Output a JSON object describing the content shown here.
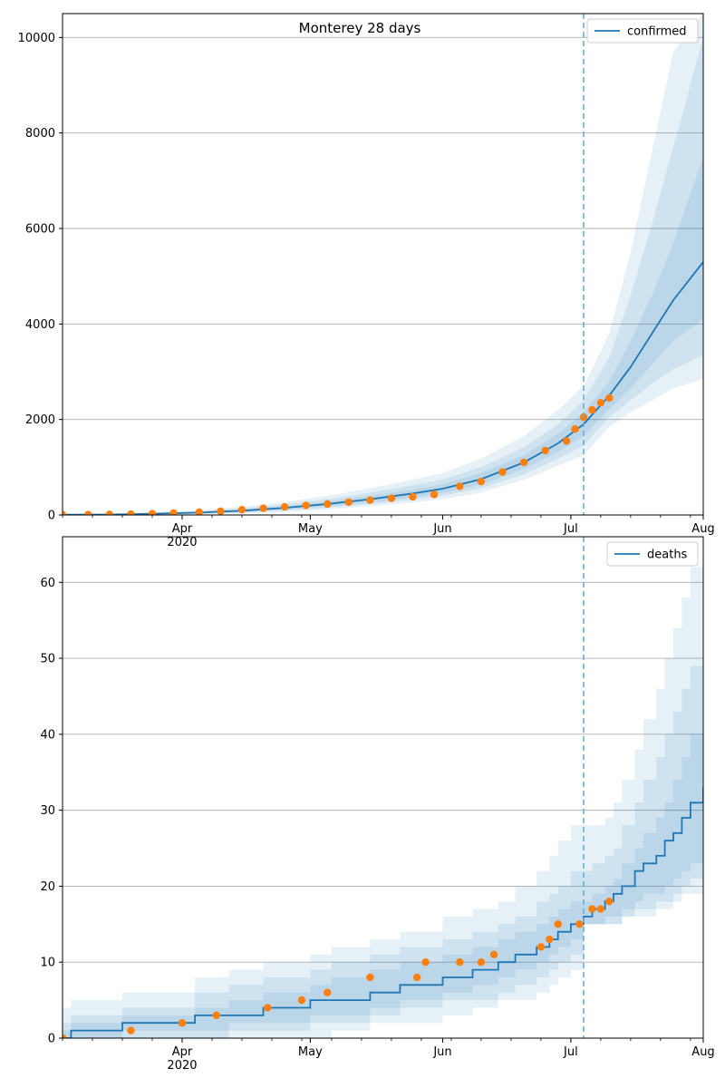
{
  "chart_data": [
    {
      "type": "line",
      "title": "Monterey 28 days",
      "xlabel": "",
      "ylabel": "",
      "x_range": [
        "2020-03-04",
        "2020-08-01"
      ],
      "ylim": [
        0,
        10500
      ],
      "yticks": [
        0,
        2000,
        4000,
        6000,
        8000,
        10000
      ],
      "xticks": [
        {
          "date": "2020-04-01",
          "label": "Apr",
          "sublabel": "2020"
        },
        {
          "date": "2020-05-01",
          "label": "May",
          "sublabel": ""
        },
        {
          "date": "2020-06-01",
          "label": "Jun",
          "sublabel": ""
        },
        {
          "date": "2020-07-01",
          "label": "Jul",
          "sublabel": ""
        },
        {
          "date": "2020-08-01",
          "label": "Aug",
          "sublabel": ""
        }
      ],
      "grid": "y",
      "legend": {
        "position": "top-right",
        "entries": [
          "confirmed"
        ]
      },
      "forecast_start": "2020-07-04",
      "colors": {
        "model": "#1f77b4",
        "observed": "#ff7f0e",
        "band": "#1f77b4",
        "vline": "#6baed6"
      },
      "series": [
        {
          "name": "confirmed",
          "role": "model",
          "x": [
            "2020-03-04",
            "2020-03-15",
            "2020-03-25",
            "2020-04-05",
            "2020-04-15",
            "2020-04-25",
            "2020-05-05",
            "2020-05-15",
            "2020-05-25",
            "2020-06-01",
            "2020-06-10",
            "2020-06-20",
            "2020-06-28",
            "2020-07-04",
            "2020-07-10",
            "2020-07-15",
            "2020-07-20",
            "2020-07-25",
            "2020-08-01"
          ],
          "values": [
            5,
            10,
            25,
            50,
            90,
            150,
            230,
            330,
            450,
            550,
            750,
            1100,
            1500,
            1900,
            2500,
            3100,
            3800,
            4500,
            5300
          ],
          "bands": [
            {
              "lower": [
                0,
                5,
                15,
                35,
                65,
                115,
                180,
                270,
                370,
                460,
                640,
                960,
                1320,
                1650,
                2220,
                2650,
                3150,
                3650,
                4100
              ],
              "upper": [
                10,
                15,
                35,
                65,
                115,
                185,
                280,
                400,
                530,
                640,
                880,
                1250,
                1700,
                2150,
                2800,
                3650,
                4600,
                5700,
                7500
              ]
            },
            {
              "lower": [
                0,
                3,
                10,
                25,
                50,
                90,
                150,
                230,
                320,
                400,
                560,
                850,
                1180,
                1450,
                2050,
                2400,
                2750,
                3050,
                3350
              ],
              "upper": [
                15,
                20,
                45,
                80,
                140,
                220,
                330,
                470,
                620,
                740,
                1000,
                1420,
                1900,
                2400,
                3300,
                4600,
                6100,
                7700,
                10000
              ]
            },
            {
              "lower": [
                0,
                0,
                5,
                15,
                35,
                65,
                115,
                185,
                260,
                330,
                470,
                740,
                1030,
                1250,
                1850,
                2150,
                2400,
                2650,
                2850
              ],
              "upper": [
                20,
                25,
                55,
                100,
                170,
                270,
                400,
                560,
                740,
                880,
                1180,
                1650,
                2200,
                2700,
                3800,
                5500,
                7600,
                9700,
                10500
              ]
            }
          ]
        },
        {
          "name": "observed",
          "role": "observed",
          "x": [
            "2020-03-04",
            "2020-03-10",
            "2020-03-15",
            "2020-03-20",
            "2020-03-25",
            "2020-03-30",
            "2020-04-05",
            "2020-04-10",
            "2020-04-15",
            "2020-04-20",
            "2020-04-25",
            "2020-04-30",
            "2020-05-05",
            "2020-05-10",
            "2020-05-15",
            "2020-05-20",
            "2020-05-25",
            "2020-05-30",
            "2020-06-05",
            "2020-06-10",
            "2020-06-15",
            "2020-06-20",
            "2020-06-25",
            "2020-06-30",
            "2020-07-02",
            "2020-07-04",
            "2020-07-06",
            "2020-07-08",
            "2020-07-10"
          ],
          "values": [
            5,
            8,
            12,
            18,
            28,
            40,
            60,
            80,
            110,
            140,
            170,
            200,
            230,
            270,
            310,
            350,
            380,
            430,
            600,
            700,
            900,
            1100,
            1350,
            1550,
            1800,
            2050,
            2200,
            2350,
            2450
          ]
        }
      ]
    },
    {
      "type": "line",
      "title": "",
      "xlabel": "",
      "ylabel": "",
      "x_range": [
        "2020-03-04",
        "2020-08-01"
      ],
      "ylim": [
        0,
        66
      ],
      "yticks": [
        0,
        10,
        20,
        30,
        40,
        50,
        60
      ],
      "xticks": [
        {
          "date": "2020-04-01",
          "label": "Apr",
          "sublabel": "2020"
        },
        {
          "date": "2020-05-01",
          "label": "May",
          "sublabel": ""
        },
        {
          "date": "2020-06-01",
          "label": "Jun",
          "sublabel": ""
        },
        {
          "date": "2020-07-01",
          "label": "Jul",
          "sublabel": ""
        },
        {
          "date": "2020-08-01",
          "label": "Aug",
          "sublabel": ""
        }
      ],
      "grid": "y",
      "legend": {
        "position": "top-right",
        "entries": [
          "deaths"
        ]
      },
      "forecast_start": "2020-07-04",
      "colors": {
        "model": "#1f77b4",
        "observed": "#ff7f0e",
        "band": "#1f77b4",
        "vline": "#6baed6"
      },
      "series": [
        {
          "name": "deaths",
          "role": "model",
          "step": true,
          "x": [
            "2020-03-04",
            "2020-03-06",
            "2020-03-18",
            "2020-04-04",
            "2020-04-12",
            "2020-04-20",
            "2020-05-01",
            "2020-05-06",
            "2020-05-15",
            "2020-05-22",
            "2020-06-01",
            "2020-06-08",
            "2020-06-14",
            "2020-06-18",
            "2020-06-23",
            "2020-06-26",
            "2020-06-28",
            "2020-07-01",
            "2020-07-04",
            "2020-07-06",
            "2020-07-09",
            "2020-07-11",
            "2020-07-13",
            "2020-07-16",
            "2020-07-18",
            "2020-07-21",
            "2020-07-23",
            "2020-07-25",
            "2020-07-27",
            "2020-07-29",
            "2020-08-01"
          ],
          "values": [
            0,
            1,
            2,
            3,
            3,
            4,
            5,
            5,
            6,
            7,
            8,
            9,
            10,
            11,
            12,
            13,
            14,
            15,
            16,
            17,
            18,
            19,
            20,
            22,
            23,
            24,
            26,
            27,
            29,
            31,
            33
          ],
          "bands": [
            {
              "lower": [
                0,
                0,
                1,
                1,
                2,
                2,
                3,
                3,
                4,
                5,
                6,
                7,
                8,
                9,
                10,
                11,
                12,
                13,
                15,
                15,
                16,
                16,
                17,
                18,
                19,
                19,
                20,
                21,
                22,
                23,
                24
              ],
              "upper": [
                1,
                2,
                3,
                4,
                5,
                6,
                7,
                8,
                9,
                10,
                11,
                12,
                13,
                14,
                15,
                16,
                17,
                18,
                18,
                19,
                20,
                21,
                23,
                25,
                27,
                29,
                31,
                34,
                37,
                40,
                44
              ]
            },
            {
              "lower": [
                0,
                0,
                0,
                0,
                1,
                1,
                2,
                2,
                3,
                4,
                5,
                5,
                6,
                7,
                8,
                9,
                10,
                11,
                15,
                15,
                15,
                15,
                16,
                17,
                17,
                18,
                18,
                19,
                20,
                21,
                22
              ],
              "upper": [
                2,
                3,
                4,
                6,
                7,
                8,
                9,
                10,
                11,
                12,
                13,
                14,
                15,
                16,
                18,
                19,
                20,
                22,
                22,
                23,
                24,
                25,
                28,
                31,
                34,
                37,
                40,
                43,
                46,
                49,
                53
              ]
            },
            {
              "lower": [
                0,
                0,
                0,
                0,
                0,
                0,
                0,
                1,
                2,
                2,
                3,
                4,
                5,
                5,
                6,
                7,
                8,
                9,
                15,
                15,
                15,
                15,
                16,
                16,
                16,
                17,
                17,
                18,
                19,
                19,
                20
              ],
              "upper": [
                4,
                5,
                6,
                8,
                9,
                10,
                11,
                12,
                13,
                14,
                16,
                17,
                18,
                20,
                22,
                24,
                26,
                28,
                28,
                28,
                29,
                31,
                34,
                38,
                42,
                46,
                50,
                54,
                58,
                62,
                66
              ]
            }
          ]
        },
        {
          "name": "observed",
          "role": "observed",
          "x": [
            "2020-03-04",
            "2020-03-20",
            "2020-04-01",
            "2020-04-09",
            "2020-04-21",
            "2020-04-29",
            "2020-05-05",
            "2020-05-15",
            "2020-05-26",
            "2020-05-28",
            "2020-06-05",
            "2020-06-10",
            "2020-06-13",
            "2020-06-24",
            "2020-06-26",
            "2020-06-28",
            "2020-07-03",
            "2020-07-06",
            "2020-07-08",
            "2020-07-10"
          ],
          "values": [
            0,
            1,
            2,
            3,
            4,
            5,
            6,
            8,
            8,
            10,
            10,
            10,
            11,
            12,
            13,
            15,
            15,
            17,
            17,
            18
          ]
        }
      ]
    }
  ]
}
